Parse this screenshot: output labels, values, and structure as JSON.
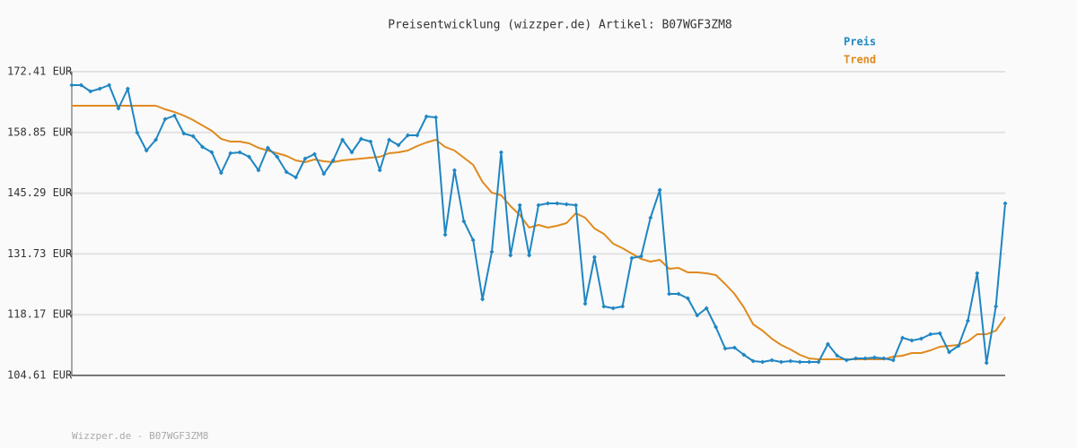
{
  "chart_data": {
    "type": "line",
    "title": "Preisentwicklung (wizzper.de) Artikel: B07WGF3ZM8",
    "footer": "Wizzper.de - B07WGF3ZM8",
    "legend": "top-right",
    "grid": true,
    "ylim": [
      104.61,
      172.41
    ],
    "yticks": [
      {
        "value": 104.61,
        "label": "104.61 EUR"
      },
      {
        "value": 118.17,
        "label": "118.17 EUR"
      },
      {
        "value": 131.73,
        "label": "131.73 EUR"
      },
      {
        "value": 145.29,
        "label": "145.29 EUR"
      },
      {
        "value": 158.85,
        "label": "158.85 EUR"
      },
      {
        "value": 172.41,
        "label": "172.41 EUR"
      }
    ],
    "series": [
      {
        "name": "Preis",
        "color": "#1f86c2",
        "markers": true,
        "values": [
          169.41,
          169.41,
          168.01,
          168.61,
          169.41,
          164.21,
          168.61,
          158.81,
          154.81,
          157.21,
          161.81,
          162.61,
          158.61,
          158.01,
          155.61,
          154.41,
          149.81,
          154.21,
          154.41,
          153.41,
          150.41,
          155.41,
          153.41,
          150.01,
          148.81,
          153.01,
          154.01,
          149.61,
          152.61,
          157.21,
          154.41,
          157.41,
          156.81,
          150.41,
          157.21,
          156.01,
          158.21,
          158.21,
          162.41,
          162.21,
          136.01,
          150.41,
          139.01,
          134.81,
          121.61,
          132.21,
          154.41,
          131.41,
          142.61,
          131.41,
          142.61,
          143.01,
          143.01,
          142.81,
          142.61,
          120.61,
          131.01,
          120.01,
          119.61,
          120.01,
          130.81,
          131.21,
          139.81,
          146.01,
          122.81,
          122.81,
          121.81,
          118.01,
          119.61,
          115.41,
          110.61,
          110.81,
          109.21,
          107.81,
          107.61,
          108.01,
          107.61,
          107.81,
          107.61,
          107.61,
          107.61,
          111.61,
          109.01,
          108.01,
          108.41,
          108.41,
          108.61,
          108.41,
          108.01,
          113.01,
          112.41,
          112.81,
          113.81,
          114.01,
          109.81,
          111.21,
          116.81,
          127.41,
          107.41,
          120.01,
          143.01
        ]
      },
      {
        "name": "Trend",
        "color": "#e08a1e",
        "markers": false,
        "values": [
          164.81,
          164.81,
          164.81,
          164.81,
          164.81,
          164.81,
          164.81,
          164.81,
          164.81,
          164.81,
          164.01,
          163.41,
          162.61,
          161.61,
          160.41,
          159.21,
          157.41,
          156.81,
          156.81,
          156.41,
          155.41,
          154.81,
          154.21,
          153.61,
          152.61,
          152.21,
          152.81,
          152.41,
          152.21,
          152.61,
          152.81,
          153.01,
          153.21,
          153.41,
          154.21,
          154.41,
          154.81,
          155.81,
          156.61,
          157.21,
          155.61,
          154.81,
          153.21,
          151.61,
          147.81,
          145.41,
          144.81,
          142.41,
          140.41,
          137.61,
          138.21,
          137.61,
          138.01,
          138.61,
          140.81,
          139.81,
          137.41,
          136.21,
          134.01,
          133.01,
          131.81,
          130.61,
          130.01,
          130.41,
          128.41,
          128.61,
          127.61,
          127.61,
          127.41,
          127.01,
          125.01,
          122.81,
          119.81,
          116.01,
          114.61,
          112.81,
          111.41,
          110.41,
          109.21,
          108.41,
          108.21,
          108.21,
          108.21,
          108.21,
          108.21,
          108.21,
          108.21,
          108.21,
          108.81,
          109.01,
          109.61,
          109.61,
          110.21,
          111.01,
          111.21,
          111.41,
          112.21,
          113.81,
          113.81,
          114.61,
          117.61
        ]
      }
    ]
  }
}
